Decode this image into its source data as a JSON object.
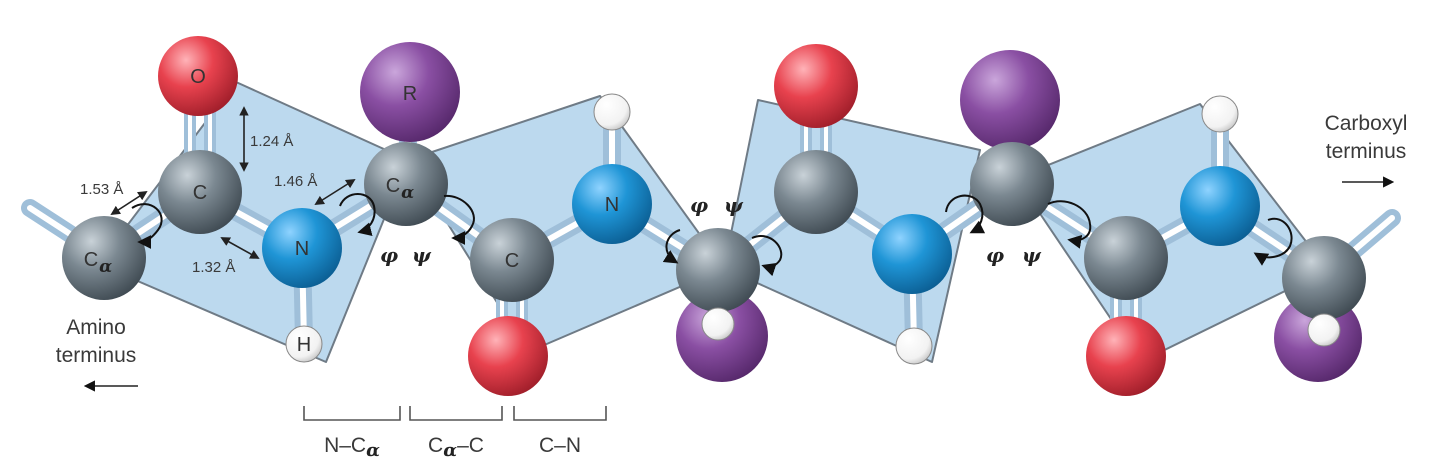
{
  "colors": {
    "plane_fill": "#bcd9ee",
    "plane_stroke": "#6f7b86",
    "carbon": "#7a8790",
    "nitrogen": "#1f95d6",
    "oxygen": "#e8424e",
    "r_group": "#8a4fa3",
    "hydrogen": "#ffffff",
    "bond": "#9fbfd9"
  },
  "atoms": {
    "o1": "O",
    "c1": "C",
    "ca1": "C",
    "ca1_sub": "α",
    "n1": "N",
    "h1": "H",
    "r1": "R",
    "ca2": "C",
    "ca2_sub": "α",
    "c2": "C",
    "n2": "N"
  },
  "bond_lengths": {
    "ca_c": "1.53 Å",
    "c_o": "1.24 Å",
    "c_n": "1.32 Å",
    "n_ca": "1.46 Å"
  },
  "torsion": {
    "phi": "φ",
    "psi": "ψ"
  },
  "termini": {
    "amino_line1": "Amino",
    "amino_line2": "terminus",
    "carboxyl_line1": "Carboxyl",
    "carboxyl_line2": "terminus"
  },
  "bond_types": {
    "n_ca_main": "N–C",
    "n_ca_sub": "α",
    "ca_c_main": "C",
    "ca_c_sub": "α",
    "ca_c_tail": "–C",
    "c_n": "C–N"
  }
}
